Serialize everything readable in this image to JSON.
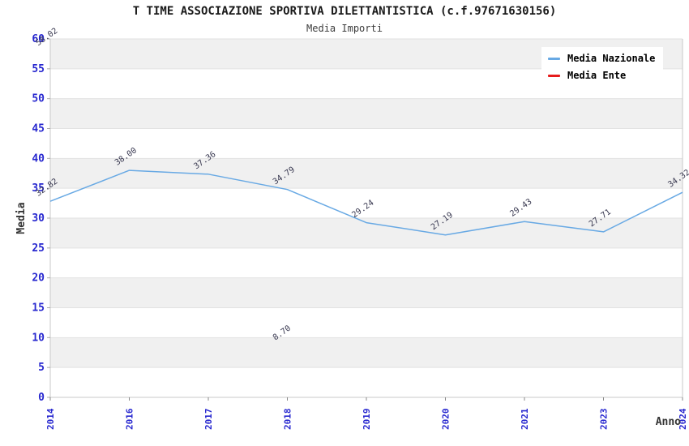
{
  "chart_data": {
    "type": "line",
    "title": "T TIME ASSOCIAZIONE SPORTIVA DILETTANTISTICA (c.f.97671630156)",
    "subtitle": "Media Importi",
    "xlabel": "Anno",
    "ylabel": "Media",
    "ylim": [
      0,
      60
    ],
    "ytick_step": 5,
    "categories": [
      "2014",
      "2016",
      "2017",
      "2018",
      "2019",
      "2020",
      "2021",
      "2023",
      "2024"
    ],
    "series": [
      {
        "name": "Media Nazionale",
        "color": "#68a9e4",
        "values": [
          32.82,
          38.0,
          37.36,
          34.79,
          29.24,
          27.19,
          29.43,
          27.71,
          34.32
        ]
      },
      {
        "name": "Media Ente",
        "color": "#e61c1c",
        "values": [
          58.02,
          null,
          null,
          8.7,
          null,
          null,
          null,
          null,
          null
        ]
      }
    ],
    "grid": "horizontal-bands",
    "legend_position": "top-right",
    "colors": {
      "tick_label": "#2727cf",
      "band_gray": "#f0f0f0",
      "band_white": "#ffffff",
      "gridline": "#e2e2e2",
      "plot_border": "#c8c8c8",
      "data_label": "#37374f",
      "axis_title": "#333333"
    }
  }
}
